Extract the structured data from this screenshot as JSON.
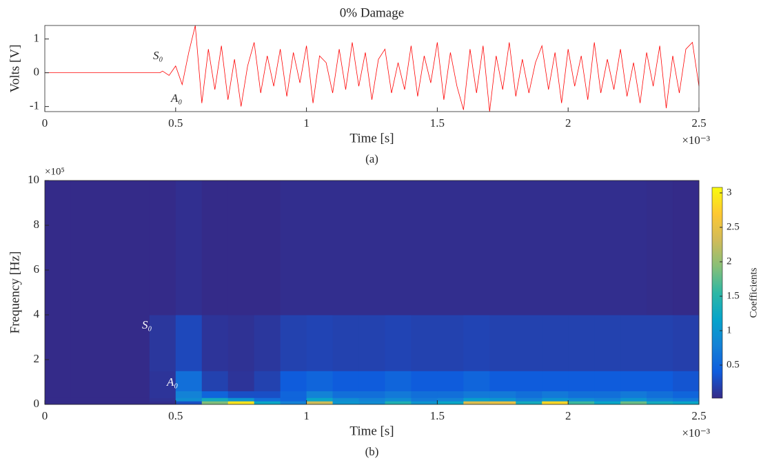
{
  "chart_data": [
    {
      "type": "line",
      "title": "0% Damage",
      "xlabel": "Time [s]",
      "ylabel": "Volts [V]",
      "x_exponent": "×10⁻³",
      "caption": "(a)",
      "annotations": [
        "S₀",
        "A₀"
      ],
      "color": "#ff0000",
      "x": [
        0,
        0.44,
        0.45,
        0.475,
        0.5,
        0.525,
        0.55,
        0.575,
        0.6,
        0.625,
        0.65,
        0.675,
        0.7,
        0.725,
        0.75,
        0.775,
        0.8,
        0.825,
        0.85,
        0.875,
        0.9,
        0.925,
        0.95,
        0.975,
        1,
        1.025,
        1.05,
        1.075,
        1.1,
        1.125,
        1.15,
        1.175,
        1.2,
        1.225,
        1.25,
        1.275,
        1.3,
        1.325,
        1.35,
        1.375,
        1.4,
        1.425,
        1.45,
        1.475,
        1.5,
        1.525,
        1.55,
        1.575,
        1.6,
        1.625,
        1.65,
        1.675,
        1.7,
        1.725,
        1.75,
        1.775,
        1.8,
        1.825,
        1.85,
        1.875,
        1.9,
        1.925,
        1.95,
        1.975,
        2,
        2.025,
        2.05,
        2.075,
        2.1,
        2.125,
        2.15,
        2.175,
        2.2,
        2.225,
        2.25,
        2.275,
        2.3,
        2.325,
        2.35,
        2.375,
        2.4,
        2.425,
        2.45,
        2.475,
        2.5
      ],
      "values": [
        0,
        0,
        0.05,
        -0.08,
        0.2,
        -0.35,
        0.6,
        1.4,
        -0.9,
        0.7,
        -0.5,
        0.8,
        -0.8,
        0.4,
        -1.0,
        0.2,
        0.9,
        -0.6,
        0.5,
        -0.4,
        0.7,
        -0.7,
        0.6,
        -0.3,
        0.8,
        -0.9,
        0.5,
        0.3,
        -0.6,
        0.7,
        -0.5,
        0.9,
        -0.4,
        0.6,
        -0.8,
        0.4,
        0.7,
        -0.6,
        0.3,
        -0.5,
        0.8,
        -0.7,
        0.5,
        -0.3,
        0.9,
        -0.8,
        0.6,
        -0.4,
        -1.1,
        0.7,
        -0.6,
        0.8,
        -1.15,
        0.5,
        -0.5,
        0.9,
        -0.7,
        0.4,
        -0.6,
        0.3,
        0.8,
        -0.5,
        0.6,
        -0.9,
        0.7,
        -0.4,
        0.5,
        -0.8,
        0.9,
        -0.6,
        0.4,
        -0.5,
        0.7,
        -0.7,
        0.3,
        -0.9,
        0.6,
        -0.4,
        0.8,
        -1.05,
        0.5,
        -0.6,
        0.7,
        0.9,
        -0.4
      ],
      "xlim": [
        0,
        2.5
      ],
      "xticks": [
        0,
        0.5,
        1,
        1.5,
        2,
        2.5
      ],
      "ylim": [
        -1.15,
        1.4
      ],
      "yticks": [
        -1,
        0,
        1
      ]
    },
    {
      "type": "heatmap",
      "xlabel": "Time [s]",
      "ylabel": "Frequency [Hz]",
      "x_exponent": "×10⁻³",
      "y_exponent": "×10⁵",
      "caption": "(b)",
      "annotations": [
        "S₀",
        "A₀"
      ],
      "colorbar_label": "Coefficients",
      "x_bins": [
        0,
        0.1,
        0.2,
        0.3,
        0.4,
        0.5,
        0.6,
        0.7,
        0.8,
        0.9,
        1,
        1.1,
        1.2,
        1.3,
        1.4,
        1.5,
        1.6,
        1.7,
        1.8,
        1.9,
        2,
        2.1,
        2.2,
        2.3,
        2.4,
        2.5
      ],
      "y_bins": [
        0,
        0.15,
        0.3,
        0.6,
        1.5,
        4,
        10
      ],
      "values": [
        [
          0.03,
          0.03,
          0.03,
          0.03,
          0.05,
          0.3,
          1.9,
          2.9,
          1.2,
          0.8,
          2.3,
          1.0,
          0.9,
          1.4,
          1.0,
          1.2,
          2.4,
          2.5,
          1.3,
          2.8,
          1.6,
          1.2,
          1.8,
          1.3,
          1.2
        ],
        [
          0.03,
          0.03,
          0.03,
          0.03,
          0.08,
          0.9,
          1.3,
          1.0,
          0.6,
          0.5,
          1.2,
          0.9,
          0.8,
          0.9,
          0.7,
          0.8,
          1.1,
          1.0,
          0.8,
          1.0,
          0.9,
          0.8,
          1.0,
          0.8,
          0.7
        ],
        [
          0.03,
          0.03,
          0.03,
          0.03,
          0.1,
          0.8,
          0.5,
          0.3,
          0.3,
          0.5,
          0.8,
          0.6,
          0.6,
          0.7,
          0.6,
          0.6,
          0.7,
          0.7,
          0.6,
          0.7,
          0.6,
          0.6,
          0.7,
          0.6,
          0.5
        ],
        [
          0.03,
          0.03,
          0.03,
          0.03,
          0.1,
          0.6,
          0.2,
          0.1,
          0.2,
          0.4,
          0.5,
          0.4,
          0.4,
          0.5,
          0.4,
          0.4,
          0.5,
          0.4,
          0.4,
          0.4,
          0.4,
          0.4,
          0.4,
          0.4,
          0.35
        ],
        [
          0.03,
          0.03,
          0.03,
          0.03,
          0.12,
          0.25,
          0.1,
          0.08,
          0.12,
          0.2,
          0.22,
          0.2,
          0.2,
          0.22,
          0.2,
          0.2,
          0.22,
          0.2,
          0.2,
          0.2,
          0.2,
          0.2,
          0.2,
          0.2,
          0.18
        ],
        [
          0.03,
          0.03,
          0.03,
          0.03,
          0.03,
          0.06,
          0.03,
          0.03,
          0.03,
          0.05,
          0.05,
          0.05,
          0.05,
          0.05,
          0.05,
          0.05,
          0.05,
          0.05,
          0.05,
          0.05,
          0.05,
          0.05,
          0.05,
          0.04,
          0.03
        ]
      ],
      "xlim": [
        0,
        2.5
      ],
      "xticks": [
        0,
        0.5,
        1,
        1.5,
        2,
        2.5
      ],
      "ylim": [
        0,
        10
      ],
      "yticks": [
        0,
        2,
        4,
        6,
        8,
        10
      ],
      "clim": [
        0.02,
        3.08
      ],
      "cticks": [
        0.5,
        1,
        1.5,
        2,
        2.5,
        3
      ],
      "colormap": [
        "#352a87",
        "#0f5cdd",
        "#1481d6",
        "#06a4ca",
        "#2eb7a4",
        "#87bf77",
        "#d1bb59",
        "#fec832",
        "#f9fb0e"
      ]
    }
  ]
}
